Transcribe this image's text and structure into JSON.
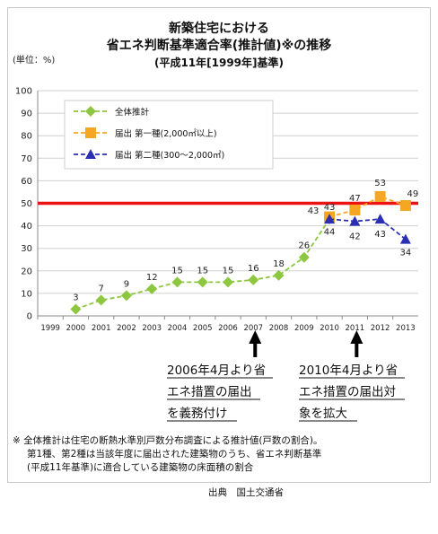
{
  "chart_data": {
    "type": "line",
    "title_lines": [
      "新築住宅における",
      "省エネ判断基準適合率(推計値)※の推移"
    ],
    "subtitle": "(平成11年[1999年]基準)",
    "ylabel": "(単位：%)",
    "ylim": [
      0,
      100
    ],
    "yticks": [
      "0",
      "10",
      "20",
      "30",
      "40",
      "50",
      "60",
      "70",
      "80",
      "90",
      "100"
    ],
    "categories": [
      "1999",
      "2000",
      "2001",
      "2002",
      "2003",
      "2004",
      "2005",
      "2006",
      "2007",
      "2008",
      "2009",
      "2010",
      "2011",
      "2012",
      "2013"
    ],
    "reference_line": 50,
    "legend_position": "top-left",
    "series": [
      {
        "name": "全体推計",
        "color": "#8dc63f",
        "marker": "diamond",
        "values": [
          null,
          3,
          7,
          9,
          12,
          15,
          15,
          15,
          16,
          18,
          26,
          43,
          null,
          null,
          null
        ],
        "labels": [
          "",
          "3",
          "7",
          "9",
          "12",
          "15",
          "15",
          "15",
          "16",
          "18",
          "26",
          "43",
          "",
          "",
          ""
        ]
      },
      {
        "name": "届出 第一種(2,000㎡以上)",
        "color": "#f5a623",
        "marker": "square",
        "values": [
          null,
          null,
          null,
          null,
          null,
          null,
          null,
          null,
          null,
          null,
          null,
          44,
          47,
          53,
          49
        ],
        "labels": [
          "",
          "",
          "",
          "",
          "",
          "",
          "",
          "",
          "",
          "",
          "",
          "44",
          "47",
          "53",
          "49"
        ]
      },
      {
        "name": "届出 第二種(300～2,000㎡)",
        "color": "#2b2fb3",
        "marker": "triangle",
        "values": [
          null,
          null,
          null,
          null,
          null,
          null,
          null,
          null,
          null,
          null,
          null,
          43,
          42,
          43,
          34
        ],
        "labels": [
          "",
          "",
          "",
          "",
          "",
          "",
          "",
          "",
          "",
          "",
          "",
          "43",
          "42",
          "43",
          "34"
        ]
      }
    ]
  },
  "annotations": [
    {
      "category": "2007",
      "lines": [
        "2006年4月より省",
        "エネ措置の届出",
        "を義務付け"
      ]
    },
    {
      "category": "2011",
      "lines": [
        "2010年4月より省",
        "エネ措置の届出対",
        "象を拡大"
      ]
    }
  ],
  "note_lines": [
    "※ 全体推計は住宅の断熱水準別戸数分布調査による推計値(戸数の割合)。",
    "第1種、第2種は当該年度に届出された建築物のうち、省エネ判断基準",
    "(平成11年基準)に適合している建築物の床面積の割合"
  ],
  "source": "出典　国土交通省",
  "colors": {
    "reference_line": "#ee1111",
    "ann_arrow": "#000000"
  }
}
